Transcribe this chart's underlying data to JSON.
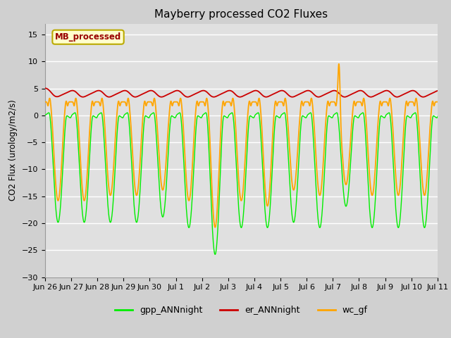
{
  "title": "Mayberry processed CO2 Fluxes",
  "ylabel": "CO2 Flux (urology/m2/s)",
  "ylim": [
    -30,
    17
  ],
  "yticks": [
    -30,
    -25,
    -20,
    -15,
    -10,
    -5,
    0,
    5,
    10,
    15
  ],
  "fig_bg_color": "#d0d0d0",
  "plot_bg_color": "#e0e0e0",
  "grid_color": "white",
  "line_colors": {
    "gpp": "#00ee00",
    "er": "#cc0000",
    "wc": "#ffa500"
  },
  "line_widths": {
    "gpp": 1.0,
    "er": 1.3,
    "wc": 1.3
  },
  "legend_labels": [
    "gpp_ANNnight",
    "er_ANNnight",
    "wc_gf"
  ],
  "annotation_text": "MB_processed",
  "annotation_color": "#990000",
  "annotation_bg": "#ffffcc",
  "annotation_border": "#bbaa00",
  "n_days": 16,
  "points_per_day": 96,
  "tick_labels": [
    "Jun 26",
    "Jun 27",
    "Jun 28",
    "Jun 29",
    "Jun 30",
    "Jul 1",
    "Jul 2",
    "Jul 3",
    "Jul 4",
    "Jul 5",
    "Jul 6",
    "Jul 7",
    "Jul 8",
    "Jul 9",
    "Jul 10",
    "Jul 11"
  ]
}
